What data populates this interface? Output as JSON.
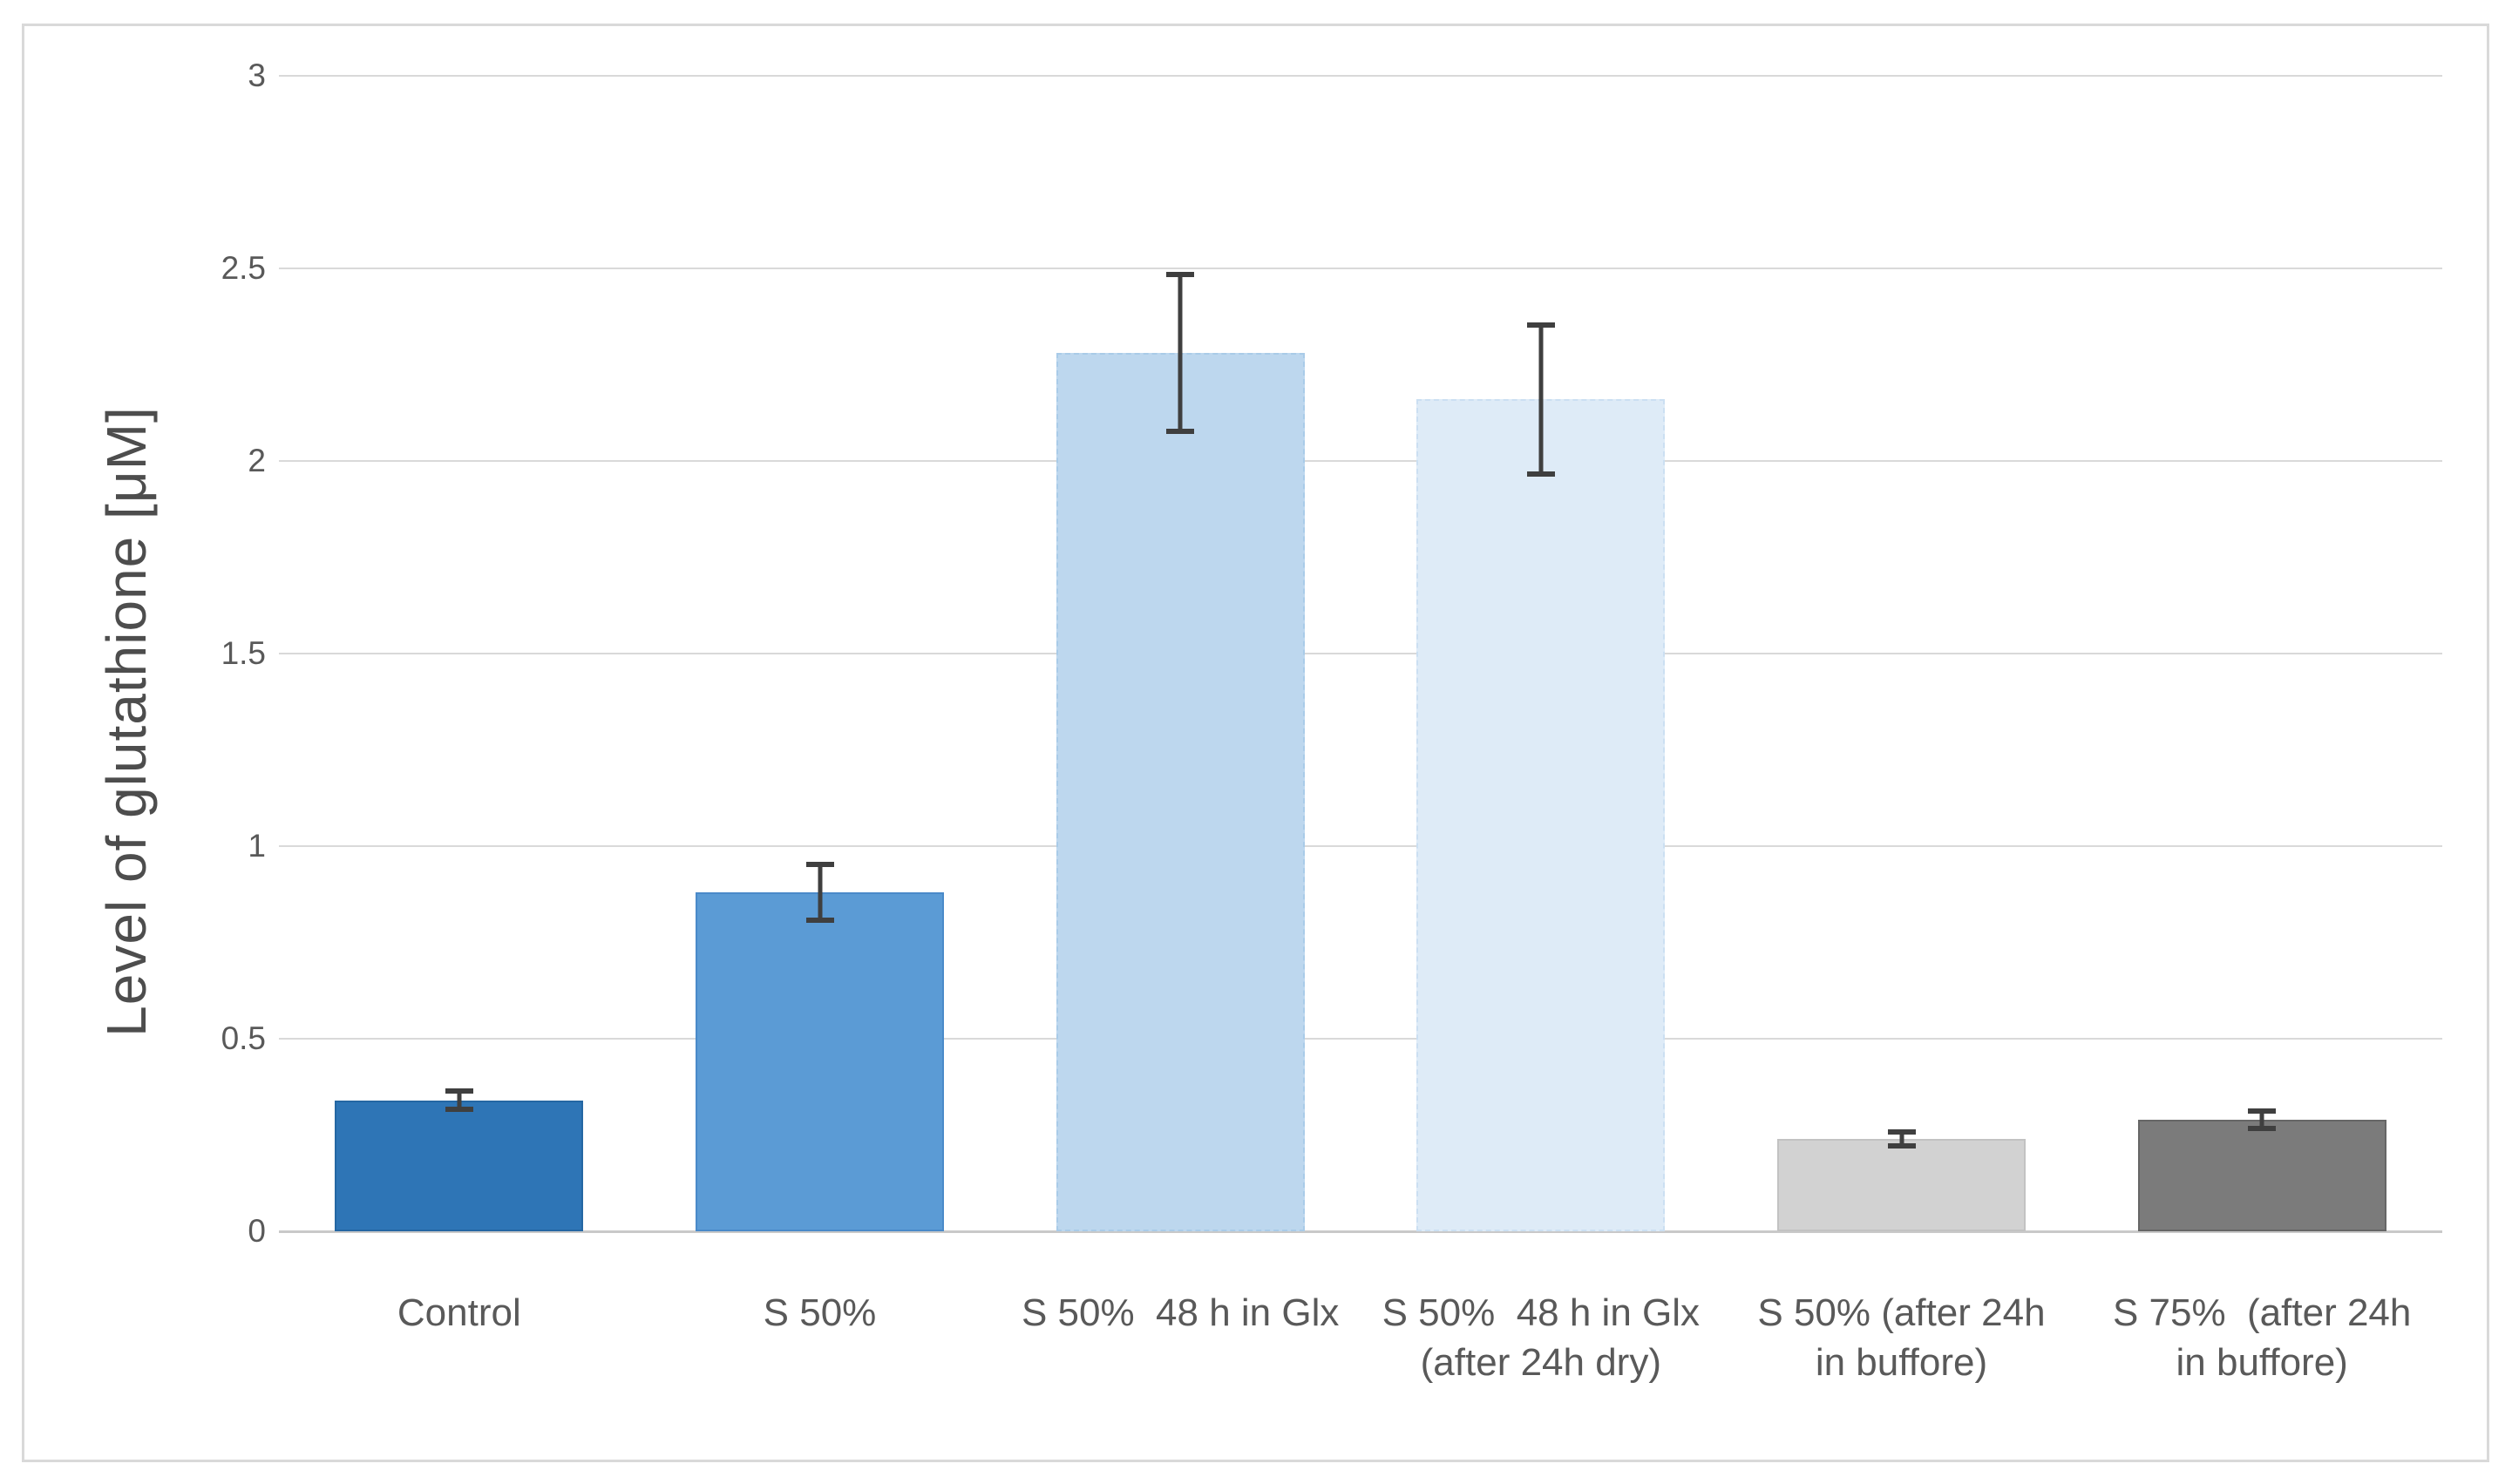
{
  "chart_data": {
    "type": "bar",
    "title": "",
    "xlabel": "",
    "ylabel": "Level of glutathione [μM]",
    "ylim": [
      0,
      3
    ],
    "yticks": [
      0,
      0.5,
      1,
      1.5,
      2,
      2.5,
      3
    ],
    "ytick_labels": [
      "0",
      "0.5",
      "1",
      "1.5",
      "2",
      "2.5",
      "3"
    ],
    "grid": true,
    "legend": "none",
    "categories": [
      "Control",
      "S 50%",
      "S 50%  48 h in Glx",
      "S 50%  48 h in Glx (after 24h dry)",
      "S 50% (after 24h in buffore)",
      "S 75%  (after 24h in buffore)"
    ],
    "category_lines": [
      [
        "Control"
      ],
      [
        "S 50%"
      ],
      [
        "S 50%  48 h in Glx"
      ],
      [
        "S 50%  48 h in Glx",
        "(after 24h dry)"
      ],
      [
        "S 50% (after 24h",
        "in buffore)"
      ],
      [
        "S 75%  (after 24h",
        "in buffore)"
      ]
    ],
    "values": [
      0.34,
      0.88,
      2.28,
      2.16,
      0.24,
      0.29
    ],
    "errors": [
      0.03,
      0.08,
      0.21,
      0.2,
      0.025,
      0.03
    ],
    "bar_colors": [
      "#2E75B6",
      "#5B9BD5",
      "#BDD7EE",
      "#DEEBF7",
      "#D2D2D2",
      "#7B7B7B"
    ],
    "bar_border_colors": [
      "#2567A3",
      "#4A8AC9",
      "#A9CBE8",
      "#CBDFF2",
      "#C2C2C2",
      "#666666"
    ],
    "bar_border_styles": [
      "solid",
      "solid",
      "dashed",
      "dashed",
      "solid",
      "solid"
    ],
    "gridline_color": "#D9D9D9",
    "error_bar_color": "#3F3F3F",
    "text_color": "#595959"
  }
}
